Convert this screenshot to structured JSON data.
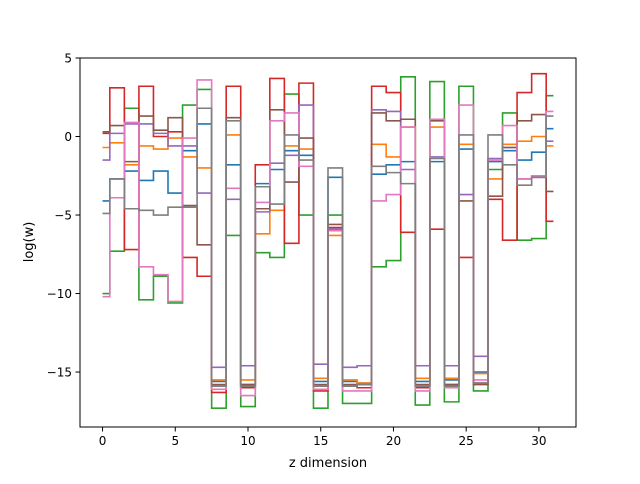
{
  "chart_data": {
    "type": "line",
    "drawstyle": "steps-mid",
    "title": "",
    "xlabel": "z dimension",
    "ylabel": "log(w)",
    "xlim": [
      -1.55,
      32.55
    ],
    "ylim": [
      -18.5,
      5
    ],
    "xticks": [
      0,
      5,
      10,
      15,
      20,
      25,
      30
    ],
    "yticks": [
      5,
      0,
      -5,
      -10,
      -15
    ],
    "ytick_labels": [
      "5",
      "0",
      "−5",
      "−10",
      "−15"
    ],
    "grid": false,
    "legend": "none",
    "x": [
      0,
      1,
      2,
      3,
      4,
      5,
      6,
      7,
      8,
      9,
      10,
      11,
      12,
      13,
      14,
      15,
      16,
      17,
      18,
      19,
      20,
      21,
      22,
      23,
      24,
      25,
      26,
      27,
      28,
      29,
      30,
      31
    ],
    "series": [
      {
        "color": "#1f77b4",
        "values": [
          -4.1,
          -2.7,
          -2.2,
          -2.8,
          -2.2,
          -3.6,
          -0.9,
          0.8,
          -15.6,
          -1.8,
          -15.8,
          -3.0,
          -2.1,
          -0.9,
          -1.2,
          -15.6,
          -2.6,
          -15.6,
          -15.7,
          -2.4,
          -1.8,
          -1.6,
          -15.6,
          -1.6,
          -15.5,
          -0.8,
          -15.0,
          -1.6,
          -0.9,
          -1.5,
          -1.0,
          0.5
        ]
      },
      {
        "color": "#ff7f0e",
        "values": [
          -0.7,
          -0.4,
          -1.8,
          -0.6,
          -0.8,
          -0.1,
          -1.3,
          -2.0,
          -15.5,
          0.1,
          -15.5,
          -6.2,
          -4.7,
          -0.6,
          -0.8,
          -15.4,
          -6.3,
          -15.5,
          -15.7,
          -0.5,
          -1.3,
          0.6,
          -15.4,
          0.6,
          -15.4,
          -0.5,
          -15.1,
          -2.7,
          -0.5,
          -0.3,
          0.0,
          -0.6
        ]
      },
      {
        "color": "#2ca02c",
        "values": [
          -10.0,
          -7.3,
          1.8,
          -10.4,
          -8.9,
          -10.6,
          2.0,
          3.0,
          -17.3,
          -6.3,
          -17.2,
          -7.4,
          -7.7,
          2.7,
          -5.0,
          -17.3,
          -5.0,
          -17.0,
          -17.0,
          -8.3,
          -7.9,
          3.8,
          -17.1,
          3.5,
          -16.9,
          3.2,
          -16.2,
          -2.1,
          1.5,
          -6.6,
          -6.5,
          2.6
        ]
      },
      {
        "color": "#d62728",
        "values": [
          0.2,
          3.1,
          -7.2,
          3.2,
          0.0,
          0.3,
          -7.7,
          -8.9,
          -16.3,
          3.2,
          -16.0,
          -1.8,
          3.7,
          -6.8,
          3.4,
          -16.2,
          -5.8,
          -15.9,
          -16.0,
          3.2,
          2.8,
          -6.1,
          -16.0,
          -5.9,
          -15.8,
          -7.7,
          -15.7,
          -4.0,
          -6.6,
          2.8,
          4.0,
          -5.4
        ]
      },
      {
        "color": "#9467bd",
        "values": [
          -1.5,
          0.2,
          0.8,
          0.8,
          0.2,
          -0.6,
          -0.6,
          -3.6,
          -14.7,
          -4.0,
          -14.6,
          -4.8,
          -1.7,
          -1.2,
          2.0,
          -14.5,
          -5.9,
          -14.7,
          -14.6,
          1.7,
          1.6,
          -2.1,
          -14.6,
          -1.3,
          -14.6,
          -3.7,
          -14.0,
          -1.4,
          -0.7,
          -2.7,
          -2.6,
          -0.3
        ]
      },
      {
        "color": "#8c564b",
        "values": [
          0.3,
          0.7,
          -1.6,
          1.3,
          0.4,
          1.2,
          -4.4,
          -6.9,
          -15.8,
          1.2,
          -15.8,
          -4.6,
          1.7,
          -2.9,
          -0.1,
          -15.8,
          -5.6,
          -15.8,
          -15.8,
          1.5,
          1.0,
          1.1,
          -15.8,
          1.0,
          -15.8,
          -4.1,
          -15.8,
          -3.8,
          -0.7,
          1.0,
          1.4,
          -3.5
        ]
      },
      {
        "color": "#e377c2",
        "values": [
          -10.2,
          -3.9,
          0.9,
          -8.3,
          -8.8,
          -10.5,
          -0.1,
          3.6,
          -16.1,
          -3.3,
          -16.5,
          -4.2,
          1.0,
          1.5,
          -1.9,
          -16.1,
          -6.0,
          -16.2,
          -16.2,
          -4.1,
          -3.7,
          0.6,
          -16.2,
          1.1,
          -16.0,
          2.0,
          -15.5,
          -1.5,
          0.7,
          -2.7,
          -2.5,
          1.6
        ]
      },
      {
        "color": "#7f7f7f",
        "values": [
          -4.9,
          -2.7,
          -4.6,
          -4.7,
          -5.0,
          -4.5,
          -4.5,
          1.8,
          -15.9,
          1.0,
          -15.9,
          -3.2,
          -4.3,
          0.1,
          -1.5,
          -15.9,
          -2.0,
          -15.9,
          -15.8,
          -1.9,
          -2.3,
          -3.0,
          -15.9,
          -1.4,
          -15.9,
          0.1,
          -15.7,
          0.1,
          -1.8,
          -3.1,
          -2.6,
          1.3
        ]
      }
    ]
  }
}
